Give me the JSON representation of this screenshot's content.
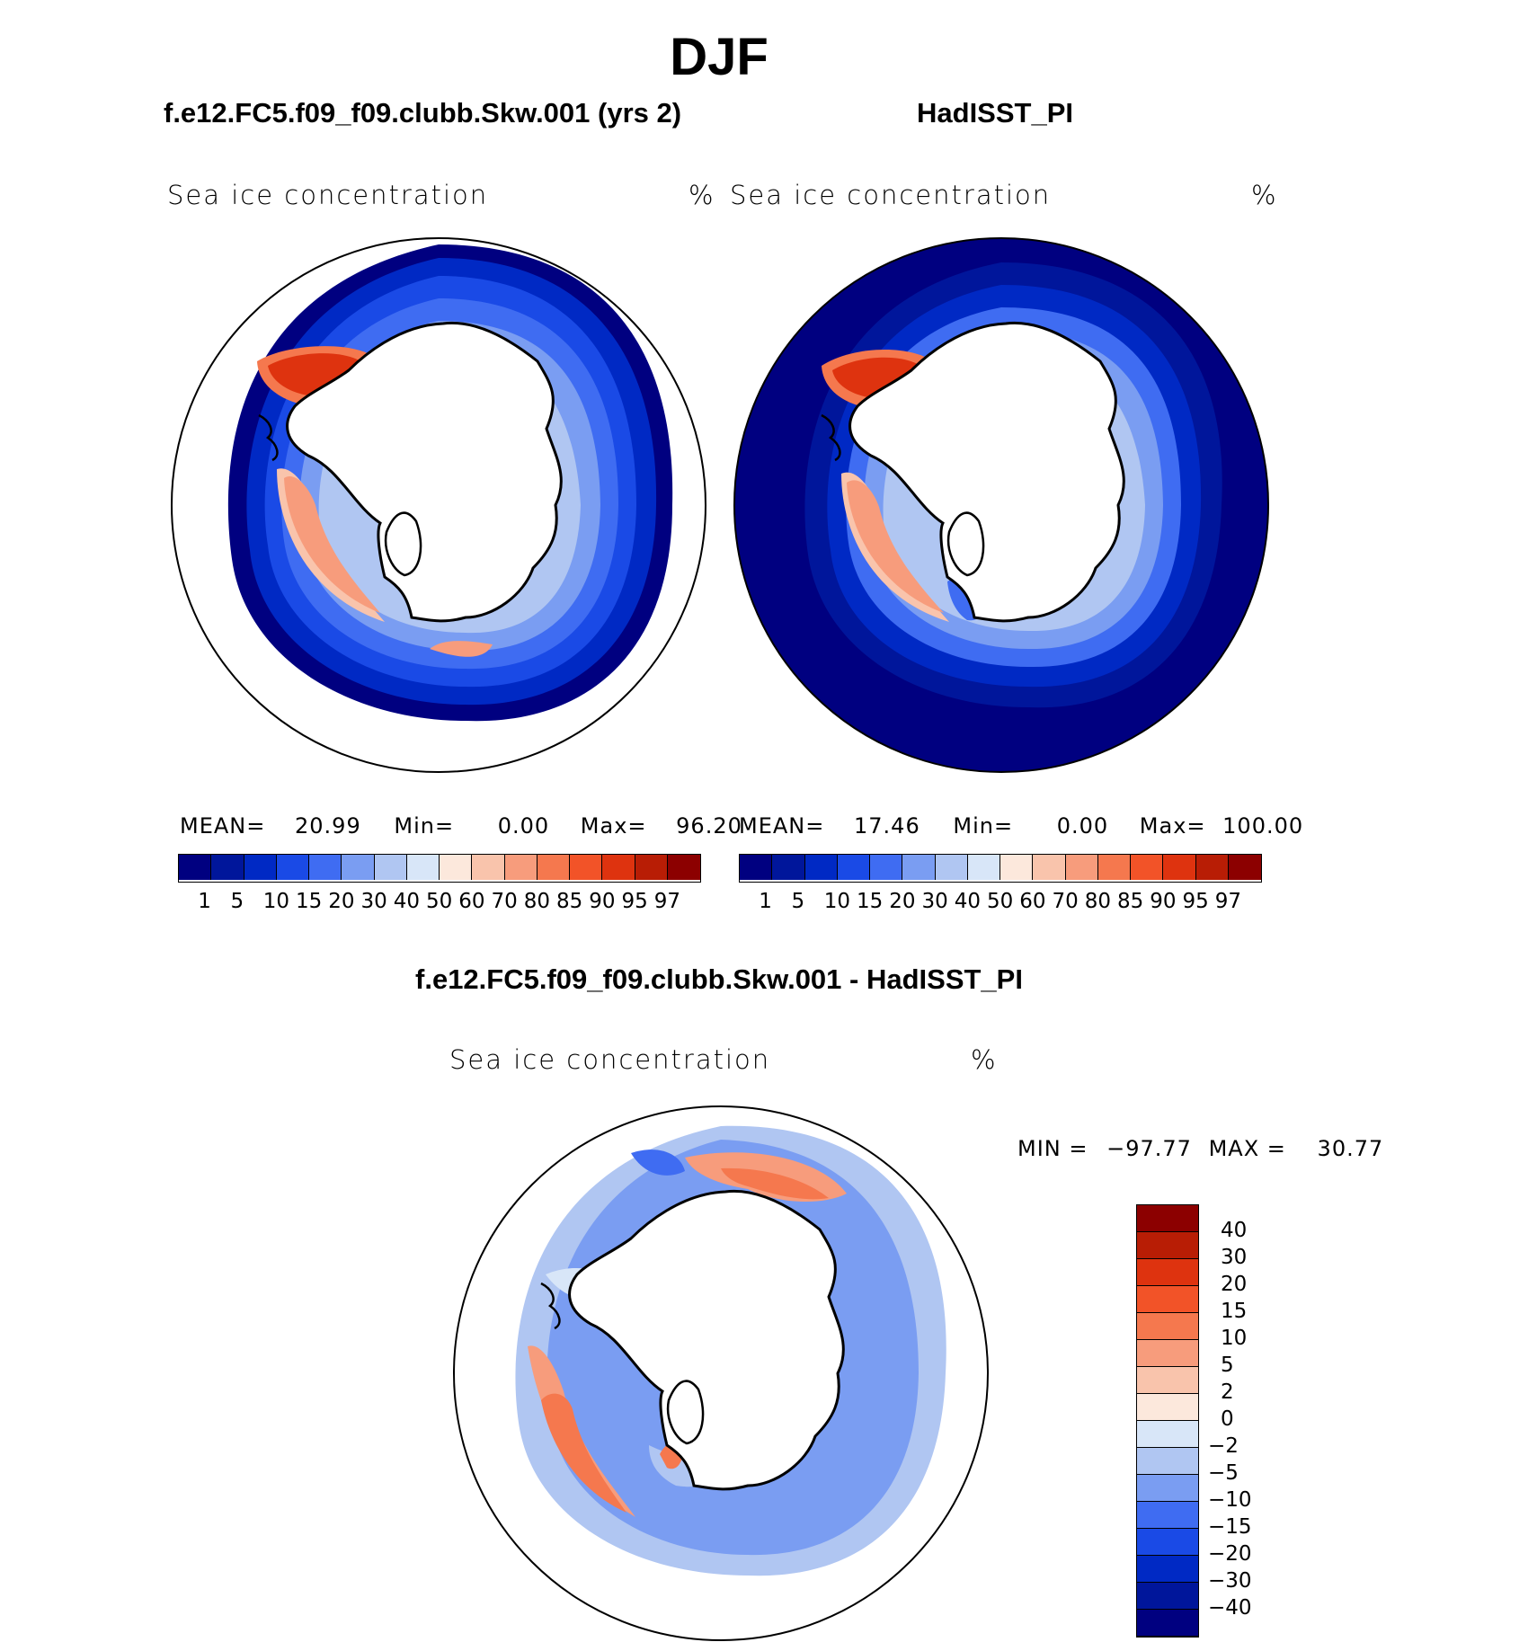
{
  "figure": {
    "title": "DJF",
    "panel_left_title": "f.e12.FC5.f09_f09.clubb.Skw.001 (yrs 2)",
    "panel_right_title": "HadISST_PI",
    "panel_diff_title": "f.e12.FC5.f09_f09.clubb.Skw.001 - HadISST_PI"
  },
  "panels": {
    "left": {
      "variable": "Sea ice concentration",
      "units": "%",
      "stats": {
        "mean_label": "MEAN=",
        "mean": "20.99",
        "min_label": "Min=",
        "min": "0.00",
        "max_label": "Max=",
        "max": "96.20"
      }
    },
    "right": {
      "variable": "Sea ice concentration",
      "units": "%",
      "stats": {
        "mean_label": "MEAN=",
        "mean": "17.46",
        "min_label": "Min=",
        "min": "0.00",
        "max_label": "Max=",
        "max": "100.00"
      }
    },
    "diff": {
      "variable": "Sea ice concentration",
      "units": "%",
      "minmax": {
        "min_label": "MIN =",
        "min": "−97.77",
        "max_label": "MAX =",
        "max": "30.77"
      }
    }
  },
  "colorbar_abs": {
    "colors": [
      "#000080",
      "#00169b",
      "#0029c4",
      "#1a4ae6",
      "#3f6cf2",
      "#7a9df2",
      "#b0c6f2",
      "#d8e6f8",
      "#fce8dc",
      "#f9c4ac",
      "#f79c7c",
      "#f5784e",
      "#f25328",
      "#de330f",
      "#b81d05",
      "#8c0000"
    ],
    "ticks": [
      "1",
      "5",
      "10",
      "15",
      "20",
      "30",
      "40",
      "50",
      "60",
      "70",
      "80",
      "85",
      "90",
      "95",
      "97"
    ]
  },
  "colorbar_diff": {
    "colors": [
      "#8c0000",
      "#b81d05",
      "#de330f",
      "#f25328",
      "#f5784e",
      "#f79c7c",
      "#f9c4ac",
      "#fce8dc",
      "#d8e6f8",
      "#b0c6f2",
      "#7a9df2",
      "#3f6cf2",
      "#1a4ae6",
      "#0029c4",
      "#00169b",
      "#000080"
    ],
    "ticks": [
      "40",
      "30",
      "20",
      "15",
      "10",
      "5",
      "2",
      "0",
      "−2",
      "−5",
      "−10",
      "−15",
      "−20",
      "−30",
      "−40"
    ]
  },
  "icons": [
    "south-polar-map"
  ]
}
